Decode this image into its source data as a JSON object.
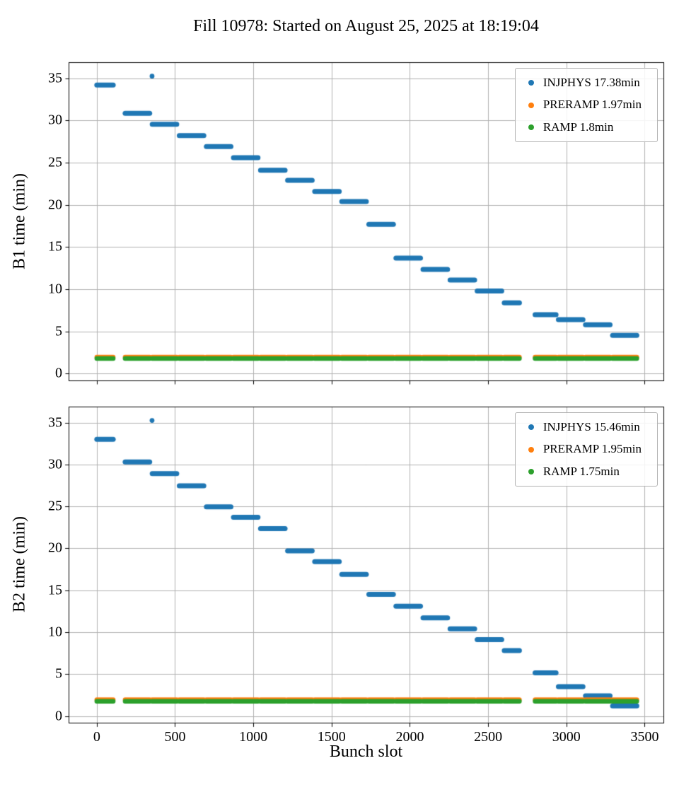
{
  "title": "Fill 10978: Started on August 25, 2025 at 18:19:04",
  "xlabel": "Bunch slot",
  "colors": {
    "injphys": "#1f77b4",
    "preramp": "#ff7f0e",
    "ramp": "#2ca02c",
    "grid": "#b0b0b0",
    "axis": "#000000",
    "background": "#ffffff"
  },
  "chart_data": [
    {
      "type": "scatter",
      "name": "B1",
      "ylabel": "B1 time (min)",
      "xlim": [
        -180,
        3620
      ],
      "ylim": [
        -0.8,
        36.9
      ],
      "xticks": [
        0,
        500,
        1000,
        1500,
        2000,
        2500,
        3000,
        3500
      ],
      "yticks": [
        0,
        5,
        10,
        15,
        20,
        25,
        30,
        35
      ],
      "xtick_labels": false,
      "grid": true,
      "legend_position": "upper right",
      "legend": [
        {
          "label": "INJPHYS 17.38min",
          "color": "#1f77b4"
        },
        {
          "label": "PRERAMP 1.97min",
          "color": "#ff7f0e"
        },
        {
          "label": "RAMP 1.8min",
          "color": "#2ca02c"
        }
      ],
      "series": [
        {
          "name": "INJPHYS",
          "color": "#1f77b4",
          "steps": [
            [
              0,
              105,
              34.2
            ],
            [
              181,
              338,
              30.85
            ],
            [
              354,
              511,
              29.55
            ],
            [
              527,
              684,
              28.2
            ],
            [
              700,
              857,
              26.9
            ],
            [
              873,
              1030,
              25.6
            ],
            [
              1046,
              1203,
              24.1
            ],
            [
              1219,
              1376,
              22.9
            ],
            [
              1392,
              1549,
              21.6
            ],
            [
              1565,
              1722,
              20.4
            ],
            [
              1738,
              1895,
              17.7
            ],
            [
              1911,
              2068,
              13.7
            ],
            [
              2084,
              2241,
              12.35
            ],
            [
              2257,
              2414,
              11.1
            ],
            [
              2430,
              2587,
              9.8
            ],
            [
              2603,
              2700,
              8.4
            ],
            [
              2800,
              2934,
              7.0
            ],
            [
              2949,
              3106,
              6.4
            ],
            [
              3122,
              3279,
              5.8
            ],
            [
              3295,
              3450,
              4.55
            ]
          ],
          "outliers": [
            [
              353,
              35.25
            ]
          ]
        },
        {
          "name": "PRERAMP",
          "color": "#ff7f0e",
          "flat_y": 1.97
        },
        {
          "name": "RAMP",
          "color": "#2ca02c",
          "flat_y": 1.8
        }
      ]
    },
    {
      "type": "scatter",
      "name": "B2",
      "ylabel": "B2 time (min)",
      "xlim": [
        -180,
        3620
      ],
      "ylim": [
        -0.8,
        36.9
      ],
      "xticks": [
        0,
        500,
        1000,
        1500,
        2000,
        2500,
        3000,
        3500
      ],
      "yticks": [
        0,
        5,
        10,
        15,
        20,
        25,
        30,
        35
      ],
      "xtick_labels": true,
      "grid": true,
      "legend_position": "upper right",
      "legend": [
        {
          "label": "INJPHYS 15.46min",
          "color": "#1f77b4"
        },
        {
          "label": "PRERAMP 1.95min",
          "color": "#ff7f0e"
        },
        {
          "label": "RAMP 1.75min",
          "color": "#2ca02c"
        }
      ],
      "series": [
        {
          "name": "INJPHYS",
          "color": "#1f77b4",
          "steps": [
            [
              0,
              105,
              33.0
            ],
            [
              181,
              338,
              30.3
            ],
            [
              354,
              511,
              28.9
            ],
            [
              527,
              684,
              27.45
            ],
            [
              700,
              857,
              24.95
            ],
            [
              873,
              1030,
              23.7
            ],
            [
              1046,
              1203,
              22.35
            ],
            [
              1219,
              1376,
              19.7
            ],
            [
              1392,
              1549,
              18.4
            ],
            [
              1565,
              1722,
              16.9
            ],
            [
              1738,
              1895,
              14.5
            ],
            [
              1911,
              2068,
              13.1
            ],
            [
              2084,
              2241,
              11.7
            ],
            [
              2257,
              2414,
              10.4
            ],
            [
              2430,
              2587,
              9.1
            ],
            [
              2603,
              2700,
              7.8
            ],
            [
              2800,
              2934,
              5.15
            ],
            [
              2949,
              3106,
              3.5
            ],
            [
              3122,
              3279,
              2.4
            ],
            [
              3295,
              3450,
              1.2
            ]
          ],
          "outliers": [
            [
              353,
              35.25
            ]
          ]
        },
        {
          "name": "PRERAMP",
          "color": "#ff7f0e",
          "flat_y": 1.95
        },
        {
          "name": "RAMP",
          "color": "#2ca02c",
          "flat_y": 1.75
        }
      ]
    }
  ]
}
